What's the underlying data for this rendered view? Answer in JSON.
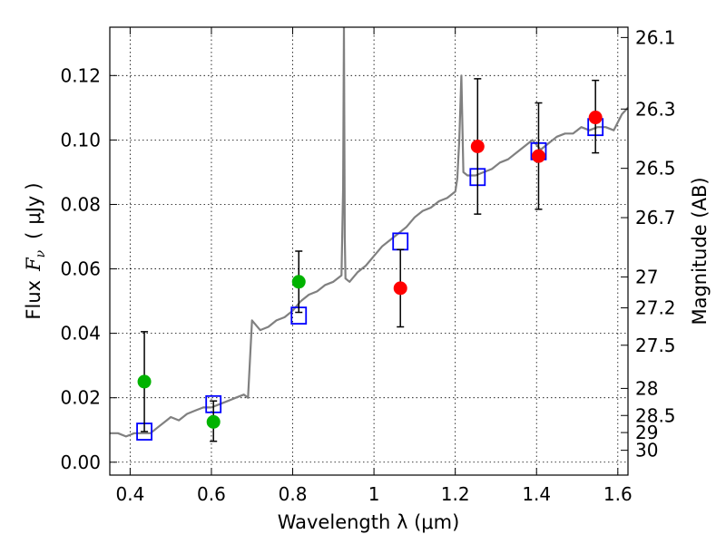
{
  "chart_data": {
    "type": "scatter",
    "xlabel": "Wavelength  λ (μm)",
    "ylabel": "Flux  F_ν  ( μJy )",
    "ylabel_parts": {
      "prefix": "Flux",
      "symbol": "F",
      "subscript": "ν",
      "open": "(",
      "unit": "μJy",
      "close": ")"
    },
    "ylabel_right": "Magnitude (AB)",
    "xlim": [
      0.35,
      1.625
    ],
    "ylim": [
      -0.004,
      0.135
    ],
    "grid": true,
    "x_ticks": [
      {
        "value": 0.4,
        "label": "0.4"
      },
      {
        "value": 0.6,
        "label": "0.6"
      },
      {
        "value": 0.8,
        "label": "0.8"
      },
      {
        "value": 1.0,
        "label": "1"
      },
      {
        "value": 1.2,
        "label": "1.2"
      },
      {
        "value": 1.4,
        "label": "1.4"
      },
      {
        "value": 1.6,
        "label": "1.6"
      }
    ],
    "y_ticks": [
      {
        "value": 0.0,
        "label": "0.00"
      },
      {
        "value": 0.02,
        "label": "0.02"
      },
      {
        "value": 0.04,
        "label": "0.04"
      },
      {
        "value": 0.06,
        "label": "0.06"
      },
      {
        "value": 0.08,
        "label": "0.08"
      },
      {
        "value": 0.1,
        "label": "0.10"
      },
      {
        "value": 0.12,
        "label": "0.12"
      }
    ],
    "right_ticks": [
      {
        "flux": 0.1318,
        "label": "26.1"
      },
      {
        "flux": 0.1096,
        "label": "26.3"
      },
      {
        "flux": 0.0912,
        "label": "26.5"
      },
      {
        "flux": 0.0759,
        "label": "26.7"
      },
      {
        "flux": 0.0575,
        "label": "27"
      },
      {
        "flux": 0.0479,
        "label": "27.2"
      },
      {
        "flux": 0.0363,
        "label": "27.5"
      },
      {
        "flux": 0.0229,
        "label": "28"
      },
      {
        "flux": 0.0145,
        "label": "28.5"
      },
      {
        "flux": 0.0092,
        "label": "29"
      },
      {
        "flux": 0.0037,
        "label": "30"
      }
    ],
    "series": [
      {
        "color": "#808080",
        "marker": "line",
        "x": [
          0.35,
          0.37,
          0.39,
          0.41,
          0.43,
          0.45,
          0.47,
          0.49,
          0.5,
          0.52,
          0.54,
          0.56,
          0.58,
          0.6,
          0.62,
          0.64,
          0.66,
          0.68,
          0.69,
          0.7,
          0.72,
          0.74,
          0.76,
          0.78,
          0.8,
          0.82,
          0.84,
          0.86,
          0.88,
          0.9,
          0.92,
          0.924,
          0.926,
          0.928,
          0.93,
          0.94,
          0.96,
          0.98,
          1.0,
          1.02,
          1.04,
          1.06,
          1.08,
          1.1,
          1.12,
          1.14,
          1.16,
          1.18,
          1.2,
          1.205,
          1.21,
          1.215,
          1.22,
          1.23,
          1.25,
          1.27,
          1.29,
          1.31,
          1.33,
          1.35,
          1.37,
          1.39,
          1.41,
          1.43,
          1.45,
          1.47,
          1.49,
          1.51,
          1.53,
          1.55,
          1.57,
          1.59,
          1.61,
          1.625
        ],
        "y": [
          0.009,
          0.009,
          0.008,
          0.009,
          0.009,
          0.009,
          0.011,
          0.013,
          0.014,
          0.013,
          0.015,
          0.016,
          0.017,
          0.017,
          0.018,
          0.019,
          0.02,
          0.021,
          0.02,
          0.044,
          0.041,
          0.042,
          0.044,
          0.045,
          0.047,
          0.05,
          0.052,
          0.053,
          0.055,
          0.056,
          0.058,
          0.085,
          0.135,
          0.07,
          0.057,
          0.056,
          0.059,
          0.061,
          0.064,
          0.067,
          0.069,
          0.071,
          0.073,
          0.076,
          0.078,
          0.079,
          0.081,
          0.082,
          0.084,
          0.088,
          0.1,
          0.12,
          0.09,
          0.089,
          0.089,
          0.09,
          0.091,
          0.093,
          0.094,
          0.096,
          0.098,
          0.1,
          0.097,
          0.099,
          0.101,
          0.102,
          0.102,
          0.104,
          0.103,
          0.104,
          0.104,
          0.103,
          0.108,
          0.11
        ]
      },
      {
        "color": "#0000ff",
        "marker": "open-square",
        "x": [
          0.435,
          0.605,
          0.815,
          1.065,
          1.255,
          1.405,
          1.545
        ],
        "y": [
          0.0095,
          0.018,
          0.0455,
          0.0685,
          0.0885,
          0.0965,
          0.104
        ]
      },
      {
        "color": "#00b300",
        "marker": "filled-circle",
        "x": [
          0.435,
          0.605,
          0.815
        ],
        "y": [
          0.025,
          0.0125,
          0.056
        ],
        "yerr_low": [
          0.0155,
          0.006,
          0.0095
        ],
        "yerr_high": [
          0.0155,
          0.0065,
          0.0095
        ]
      },
      {
        "color": "#ff0000",
        "marker": "filled-circle",
        "x": [
          1.065,
          1.255,
          1.405,
          1.545
        ],
        "y": [
          0.054,
          0.098,
          0.095,
          0.107
        ],
        "yerr_low": [
          0.012,
          0.021,
          0.0165,
          0.011
        ],
        "yerr_high": [
          0.012,
          0.021,
          0.0165,
          0.0115
        ]
      }
    ]
  }
}
